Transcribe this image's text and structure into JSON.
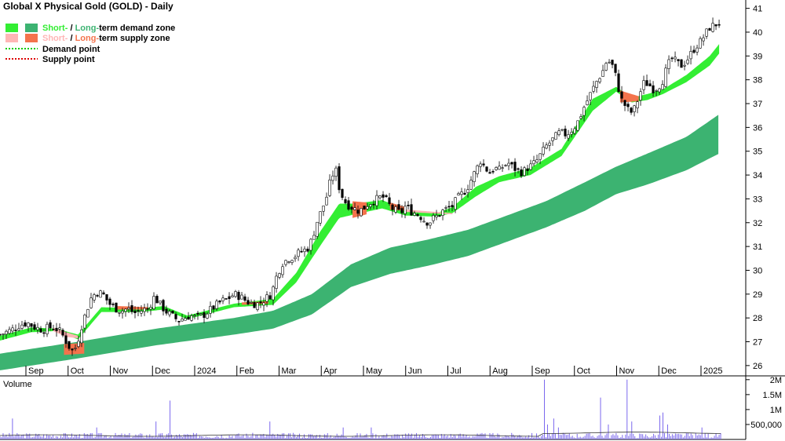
{
  "chart_data": {
    "type": "candlestick",
    "title": "Global X Physical Gold (GOLD) - Daily",
    "colors": {
      "short_demand": "#33ee33",
      "long_demand": "#3cb371",
      "short_supply": "#ffb6b6",
      "long_supply": "#f4734c",
      "demand_point": "#00cc00",
      "supply_point": "#dd0000",
      "volume_bar": "#7b68ee",
      "volume_label": "#6a0dad"
    },
    "legend": [
      {
        "short": "Short-",
        "sep": " / ",
        "long": "Long-",
        "rest": "term demand zone"
      },
      {
        "short": "Short-",
        "sep": " / ",
        "long": "Long-",
        "rest": "term supply zone"
      },
      {
        "label": "Demand point"
      },
      {
        "label": "Supply point"
      }
    ],
    "x_labels": [
      "Sep",
      "Oct",
      "Nov",
      "Dec",
      "2024",
      "Feb",
      "Mar",
      "Apr",
      "May",
      "Jun",
      "Jul",
      "Aug",
      "Sep",
      "Oct",
      "Nov",
      "Dec",
      "2025"
    ],
    "y_ticks": [
      26,
      27,
      28,
      29,
      30,
      31,
      32,
      33,
      34,
      35,
      36,
      37,
      38,
      39,
      40,
      41
    ],
    "ylim": [
      25.6,
      41.35
    ],
    "price_path": [
      [
        0,
        27.3
      ],
      [
        15,
        27.5
      ],
      [
        25,
        27.7
      ],
      [
        35,
        27.8
      ],
      [
        45,
        27.6
      ],
      [
        55,
        27.5
      ],
      [
        62,
        27.6
      ],
      [
        70,
        27.6
      ],
      [
        78,
        27.4
      ],
      [
        85,
        27.0
      ],
      [
        92,
        26.6
      ],
      [
        98,
        26.8
      ],
      [
        104,
        27.6
      ],
      [
        110,
        28.2
      ],
      [
        116,
        28.8
      ],
      [
        124,
        29.1
      ],
      [
        132,
        29.0
      ],
      [
        140,
        28.6
      ],
      [
        148,
        28.4
      ],
      [
        156,
        28.3
      ],
      [
        164,
        28.4
      ],
      [
        172,
        28.2
      ],
      [
        180,
        28.3
      ],
      [
        190,
        28.4
      ],
      [
        198,
        28.9
      ],
      [
        204,
        28.6
      ],
      [
        212,
        28.3
      ],
      [
        220,
        28.1
      ],
      [
        228,
        27.9
      ],
      [
        236,
        28.0
      ],
      [
        244,
        28.1
      ],
      [
        252,
        28.0
      ],
      [
        260,
        28.1
      ],
      [
        268,
        28.3
      ],
      [
        276,
        28.5
      ],
      [
        284,
        28.7
      ],
      [
        292,
        28.8
      ],
      [
        300,
        29.0
      ],
      [
        308,
        28.9
      ],
      [
        316,
        28.7
      ],
      [
        324,
        28.6
      ],
      [
        332,
        28.6
      ],
      [
        340,
        28.8
      ],
      [
        348,
        29.0
      ],
      [
        355,
        29.8
      ],
      [
        362,
        30.3
      ],
      [
        370,
        30.5
      ],
      [
        378,
        30.6
      ],
      [
        386,
        30.8
      ],
      [
        394,
        30.9
      ],
      [
        400,
        31.3
      ],
      [
        406,
        32.0
      ],
      [
        412,
        32.5
      ],
      [
        418,
        33.0
      ],
      [
        424,
        33.8
      ],
      [
        430,
        34.3
      ],
      [
        436,
        33.3
      ],
      [
        442,
        32.9
      ],
      [
        448,
        32.7
      ],
      [
        454,
        32.6
      ],
      [
        460,
        32.5
      ],
      [
        466,
        32.6
      ],
      [
        472,
        32.8
      ],
      [
        478,
        32.9
      ],
      [
        484,
        33.0
      ],
      [
        490,
        33.1
      ],
      [
        496,
        32.9
      ],
      [
        502,
        32.6
      ],
      [
        508,
        32.5
      ],
      [
        514,
        32.4
      ],
      [
        520,
        32.7
      ],
      [
        526,
        32.5
      ],
      [
        532,
        32.4
      ],
      [
        538,
        32.3
      ],
      [
        544,
        32.1
      ],
      [
        550,
        32.0
      ],
      [
        556,
        32.2
      ],
      [
        562,
        32.3
      ],
      [
        568,
        32.5
      ],
      [
        574,
        32.6
      ],
      [
        580,
        32.7
      ],
      [
        586,
        33.0
      ],
      [
        592,
        33.2
      ],
      [
        598,
        33.4
      ],
      [
        604,
        33.8
      ],
      [
        610,
        34.2
      ],
      [
        616,
        34.6
      ],
      [
        622,
        34.3
      ],
      [
        628,
        34.1
      ],
      [
        634,
        34.3
      ],
      [
        640,
        34.2
      ],
      [
        646,
        34.4
      ],
      [
        652,
        34.5
      ],
      [
        658,
        34.3
      ],
      [
        664,
        34.2
      ],
      [
        670,
        34.1
      ],
      [
        676,
        34.3
      ],
      [
        682,
        34.4
      ],
      [
        688,
        34.6
      ],
      [
        694,
        34.9
      ],
      [
        700,
        35.2
      ],
      [
        706,
        35.4
      ],
      [
        712,
        35.6
      ],
      [
        718,
        35.8
      ],
      [
        724,
        35.7
      ],
      [
        730,
        35.8
      ],
      [
        736,
        36.0
      ],
      [
        742,
        36.3
      ],
      [
        748,
        36.8
      ],
      [
        754,
        37.2
      ],
      [
        760,
        37.6
      ],
      [
        766,
        38.0
      ],
      [
        772,
        38.3
      ],
      [
        778,
        38.8
      ],
      [
        784,
        38.7
      ],
      [
        790,
        38.1
      ],
      [
        796,
        37.2
      ],
      [
        802,
        36.9
      ],
      [
        808,
        36.6
      ],
      [
        814,
        36.8
      ],
      [
        820,
        37.4
      ],
      [
        826,
        37.9
      ],
      [
        832,
        37.8
      ],
      [
        838,
        37.6
      ],
      [
        844,
        37.7
      ],
      [
        850,
        38.0
      ],
      [
        856,
        38.6
      ],
      [
        862,
        38.9
      ],
      [
        868,
        38.7
      ],
      [
        874,
        38.6
      ],
      [
        880,
        38.8
      ],
      [
        886,
        39.1
      ],
      [
        892,
        39.4
      ],
      [
        898,
        39.6
      ],
      [
        904,
        39.9
      ],
      [
        910,
        40.2
      ],
      [
        916,
        40.3
      ],
      [
        922,
        40.4
      ]
    ],
    "short_demand_band": [
      [
        0,
        27.05,
        27.25
      ],
      [
        40,
        27.4,
        27.6
      ],
      [
        72,
        27.45,
        27.55
      ],
      [
        100,
        27.1,
        27.3
      ],
      [
        130,
        28.25,
        28.45
      ],
      [
        180,
        28.25,
        28.4
      ],
      [
        210,
        28.35,
        28.5
      ],
      [
        240,
        27.95,
        28.1
      ],
      [
        300,
        28.45,
        28.6
      ],
      [
        350,
        28.55,
        28.8
      ],
      [
        380,
        29.5,
        29.9
      ],
      [
        410,
        31.0,
        31.6
      ],
      [
        435,
        32.2,
        32.8
      ],
      [
        455,
        32.35,
        32.8
      ],
      [
        490,
        32.6,
        32.95
      ],
      [
        520,
        32.3,
        32.55
      ],
      [
        560,
        32.25,
        32.4
      ],
      [
        580,
        32.4,
        32.65
      ],
      [
        610,
        33.1,
        33.5
      ],
      [
        640,
        33.7,
        33.95
      ],
      [
        680,
        34.0,
        34.3
      ],
      [
        720,
        34.8,
        35.1
      ],
      [
        760,
        36.7,
        37.2
      ],
      [
        790,
        37.5,
        37.7
      ],
      [
        810,
        37.05,
        37.25
      ],
      [
        830,
        37.15,
        37.4
      ],
      [
        850,
        37.4,
        37.6
      ],
      [
        880,
        37.9,
        38.2
      ],
      [
        910,
        38.6,
        39.0
      ],
      [
        922,
        39.1,
        39.5
      ]
    ],
    "long_demand_band": [
      [
        0,
        25.8,
        26.5
      ],
      [
        100,
        26.3,
        27.0
      ],
      [
        200,
        26.85,
        27.55
      ],
      [
        300,
        27.3,
        28.0
      ],
      [
        350,
        27.55,
        28.3
      ],
      [
        400,
        28.15,
        29.0
      ],
      [
        450,
        29.3,
        30.25
      ],
      [
        500,
        29.85,
        30.95
      ],
      [
        550,
        30.2,
        31.3
      ],
      [
        600,
        30.6,
        31.7
      ],
      [
        650,
        31.2,
        32.3
      ],
      [
        700,
        31.8,
        32.9
      ],
      [
        750,
        32.5,
        33.7
      ],
      [
        790,
        33.2,
        34.35
      ],
      [
        830,
        33.6,
        34.9
      ],
      [
        880,
        34.2,
        35.6
      ],
      [
        922,
        34.9,
        36.55
      ]
    ],
    "supply_segments": [
      {
        "kind": "long",
        "band": [
          [
            82,
            26.45,
            26.9
          ],
          [
            108,
            26.5,
            26.95
          ]
        ]
      },
      {
        "kind": "short",
        "band": [
          [
            68,
            27.45,
            27.6
          ],
          [
            85,
            27.2,
            27.4
          ],
          [
            100,
            27.15,
            27.25
          ]
        ]
      },
      {
        "kind": "long",
        "band": [
          [
            150,
            28.35,
            28.5
          ],
          [
            190,
            28.35,
            28.45
          ]
        ]
      },
      {
        "kind": "long",
        "band": [
          [
            310,
            28.55,
            28.65
          ],
          [
            345,
            28.6,
            28.7
          ]
        ]
      },
      {
        "kind": "long",
        "band": [
          [
            452,
            32.2,
            32.9
          ],
          [
            470,
            32.35,
            32.85
          ]
        ]
      },
      {
        "kind": "long",
        "band": [
          [
            500,
            32.55,
            32.85
          ],
          [
            520,
            32.5,
            32.65
          ]
        ]
      },
      {
        "kind": "short",
        "band": [
          [
            520,
            32.45,
            32.55
          ],
          [
            580,
            32.35,
            32.4
          ]
        ]
      },
      {
        "kind": "long",
        "band": [
          [
            795,
            37.05,
            37.55
          ],
          [
            820,
            37.1,
            37.3
          ]
        ]
      }
    ],
    "volume": {
      "label": "Volume",
      "y_ticks": [
        {
          "label": "2M",
          "value": 2000000
        },
        {
          "label": "1.5M",
          "value": 1500000
        },
        {
          "label": "1M",
          "value": 1000000
        },
        {
          "label": "500,000",
          "value": 500000
        }
      ],
      "ylim": [
        0,
        2100000
      ],
      "spikes": [
        [
          15,
          700000
        ],
        [
          124,
          400000
        ],
        [
          200,
          600000
        ],
        [
          218,
          1300000
        ],
        [
          345,
          600000
        ],
        [
          440,
          400000
        ],
        [
          475,
          400000
        ],
        [
          698,
          2000000
        ],
        [
          702,
          500000
        ],
        [
          710,
          700000
        ],
        [
          716,
          400000
        ],
        [
          770,
          1400000
        ],
        [
          780,
          500000
        ],
        [
          804,
          2000000
        ],
        [
          810,
          600000
        ],
        [
          846,
          800000
        ],
        [
          850,
          900000
        ],
        [
          856,
          500000
        ],
        [
          900,
          400000
        ]
      ]
    }
  }
}
